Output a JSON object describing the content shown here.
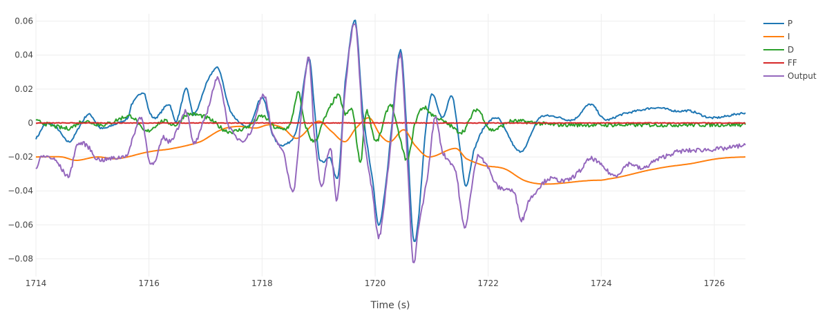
{
  "chart_data": {
    "type": "line",
    "title": "",
    "xlabel": "Time (s)",
    "ylabel": "",
    "xlim": [
      1714,
      1726.55
    ],
    "ylim": [
      -0.0904,
      0.0643
    ],
    "grid": true,
    "legend_position": "top-right",
    "x_ticks": [
      1714,
      1716,
      1718,
      1720,
      1722,
      1724,
      1726
    ],
    "x_tick_labels": [
      "1714",
      "1716",
      "1718",
      "1720",
      "1722",
      "1724",
      "1726"
    ],
    "y_ticks": [
      0.06,
      0.04,
      0.02,
      0,
      -0.02,
      -0.04,
      -0.06,
      -0.08
    ],
    "y_tick_labels": [
      "0.06",
      "0.04",
      "0.02",
      "0",
      "−0.02",
      "−0.04",
      "−0.06",
      "−0.08"
    ],
    "series": [
      {
        "name": "P",
        "color": "#1f77b4",
        "noise": 0.0006,
        "t": [
          1714.0,
          1714.16,
          1714.34,
          1714.59,
          1714.83,
          1714.95,
          1715.14,
          1715.38,
          1715.63,
          1715.69,
          1715.91,
          1716.0,
          1716.11,
          1716.36,
          1716.48,
          1716.66,
          1716.79,
          1717.03,
          1717.23,
          1717.4,
          1717.52,
          1717.76,
          1718.01,
          1718.19,
          1718.37,
          1718.62,
          1718.83,
          1718.92,
          1719.01,
          1719.21,
          1719.35,
          1719.47,
          1719.65,
          1719.78,
          1719.96,
          1720.06,
          1720.15,
          1720.27,
          1720.45,
          1720.57,
          1720.67,
          1720.76,
          1720.88,
          1721.0,
          1721.19,
          1721.37,
          1721.53,
          1721.61,
          1721.74,
          1721.92,
          1722.16,
          1722.35,
          1722.51,
          1722.65,
          1722.75,
          1722.9,
          1723.14,
          1723.51,
          1723.81,
          1724.06,
          1724.36,
          1724.61,
          1724.97,
          1725.34,
          1725.58,
          1725.95,
          1726.55
        ],
        "v": [
          -0.009,
          -0.001,
          -0.002,
          -0.011,
          0.001,
          0.005,
          -0.003,
          -0.001,
          0.003,
          0.011,
          0.018,
          0.007,
          0.003,
          0.011,
          0.001,
          0.02,
          0.005,
          0.024,
          0.032,
          0.011,
          0.003,
          -0.002,
          0.015,
          -0.007,
          -0.013,
          -0.003,
          0.038,
          0.011,
          -0.021,
          -0.021,
          -0.031,
          0.024,
          0.06,
          0.007,
          -0.034,
          -0.06,
          -0.046,
          -0.009,
          0.043,
          -0.009,
          -0.067,
          -0.058,
          -0.009,
          0.017,
          0.003,
          0.015,
          -0.021,
          -0.037,
          -0.017,
          -0.003,
          0.003,
          -0.007,
          -0.016,
          -0.015,
          -0.007,
          0.003,
          0.004,
          0.002,
          0.011,
          0.002,
          0.005,
          0.007,
          0.009,
          0.007,
          0.007,
          0.003,
          0.006
        ]
      },
      {
        "name": "I",
        "color": "#ff7f0e",
        "noise": 0,
        "t": [
          1714.0,
          1714.46,
          1714.71,
          1715.08,
          1715.44,
          1716.0,
          1716.42,
          1716.91,
          1717.28,
          1717.58,
          1717.89,
          1718.13,
          1718.37,
          1718.62,
          1718.99,
          1719.23,
          1719.47,
          1719.66,
          1719.9,
          1720.09,
          1720.27,
          1720.51,
          1720.7,
          1720.94,
          1721.43,
          1721.61,
          1721.92,
          1722.29,
          1722.65,
          1723.02,
          1723.75,
          1724.12,
          1724.97,
          1725.58,
          1726.07,
          1726.55
        ],
        "v": [
          -0.02,
          -0.02,
          -0.022,
          -0.02,
          -0.021,
          -0.017,
          -0.015,
          -0.011,
          -0.004,
          -0.002,
          -0.003,
          -0.001,
          -0.003,
          -0.009,
          0.001,
          -0.005,
          -0.011,
          -0.003,
          0.003,
          -0.007,
          -0.011,
          -0.004,
          -0.013,
          -0.02,
          -0.015,
          -0.021,
          -0.025,
          -0.027,
          -0.034,
          -0.036,
          -0.034,
          -0.033,
          -0.027,
          -0.024,
          -0.021,
          -0.02
        ]
      },
      {
        "name": "D",
        "color": "#2ca02c",
        "noise": 0.0012,
        "t": [
          1714.0,
          1714.34,
          1714.59,
          1714.83,
          1715.2,
          1715.69,
          1715.93,
          1716.24,
          1716.48,
          1716.66,
          1717.03,
          1717.4,
          1717.76,
          1718.01,
          1718.25,
          1718.5,
          1718.64,
          1718.74,
          1718.92,
          1719.11,
          1719.35,
          1719.47,
          1719.6,
          1719.74,
          1719.84,
          1720.02,
          1720.27,
          1720.39,
          1720.57,
          1720.7,
          1720.84,
          1721.0,
          1721.31,
          1721.55,
          1721.8,
          1722.04,
          1722.41,
          1723.14,
          1726.55
        ],
        "v": [
          0.001,
          -0.002,
          -0.003,
          0.001,
          -0.001,
          0.004,
          -0.005,
          0.001,
          -0.001,
          0.005,
          0.003,
          -0.005,
          -0.002,
          0.004,
          -0.003,
          -0.001,
          0.018,
          0.001,
          -0.011,
          0.003,
          0.016,
          0.005,
          0.007,
          -0.023,
          0.007,
          -0.011,
          0.011,
          -0.003,
          -0.022,
          -0.001,
          0.009,
          0.005,
          -0.001,
          -0.005,
          0.008,
          -0.004,
          0.001,
          -0.001,
          -0.001
        ]
      },
      {
        "name": "FF",
        "color": "#d62728",
        "noise": 0.0002,
        "t": [
          1714.0,
          1726.55
        ],
        "v": [
          0,
          0
        ]
      },
      {
        "name": "Output",
        "color": "#9467bd",
        "noise": 0.0013,
        "t": [
          1714.0,
          1714.1,
          1714.34,
          1714.59,
          1714.71,
          1714.89,
          1715.08,
          1715.32,
          1715.63,
          1715.75,
          1715.87,
          1716.0,
          1716.11,
          1716.24,
          1716.36,
          1716.48,
          1716.66,
          1716.79,
          1717.03,
          1717.23,
          1717.4,
          1717.64,
          1717.83,
          1718.03,
          1718.19,
          1718.37,
          1718.56,
          1718.7,
          1718.83,
          1718.92,
          1719.05,
          1719.21,
          1719.33,
          1719.47,
          1719.65,
          1719.78,
          1719.96,
          1720.06,
          1720.15,
          1720.27,
          1720.45,
          1720.57,
          1720.67,
          1720.76,
          1720.94,
          1721.06,
          1721.19,
          1721.43,
          1721.58,
          1721.67,
          1721.8,
          1721.92,
          1722.16,
          1722.35,
          1722.47,
          1722.59,
          1722.71,
          1723.02,
          1723.14,
          1723.39,
          1723.63,
          1723.81,
          1724.0,
          1724.24,
          1724.49,
          1724.73,
          1724.91,
          1725.1,
          1725.34,
          1725.71,
          1726.2,
          1726.55
        ],
        "v": [
          -0.027,
          -0.02,
          -0.022,
          -0.031,
          -0.014,
          -0.013,
          -0.021,
          -0.021,
          -0.018,
          -0.005,
          0.003,
          -0.021,
          -0.023,
          -0.009,
          -0.011,
          -0.005,
          0.007,
          -0.012,
          0.007,
          0.026,
          -0.001,
          -0.01,
          -0.003,
          0.017,
          -0.007,
          -0.017,
          -0.039,
          0.007,
          0.038,
          -0.005,
          -0.037,
          -0.015,
          -0.045,
          0.02,
          0.059,
          -0.001,
          -0.042,
          -0.067,
          -0.05,
          -0.013,
          0.04,
          -0.021,
          -0.082,
          -0.062,
          -0.029,
          0.003,
          -0.017,
          -0.029,
          -0.062,
          -0.046,
          -0.021,
          -0.022,
          -0.037,
          -0.039,
          -0.042,
          -0.057,
          -0.046,
          -0.034,
          -0.033,
          -0.034,
          -0.028,
          -0.021,
          -0.025,
          -0.031,
          -0.024,
          -0.027,
          -0.023,
          -0.02,
          -0.017,
          -0.016,
          -0.015,
          -0.013
        ]
      }
    ]
  }
}
